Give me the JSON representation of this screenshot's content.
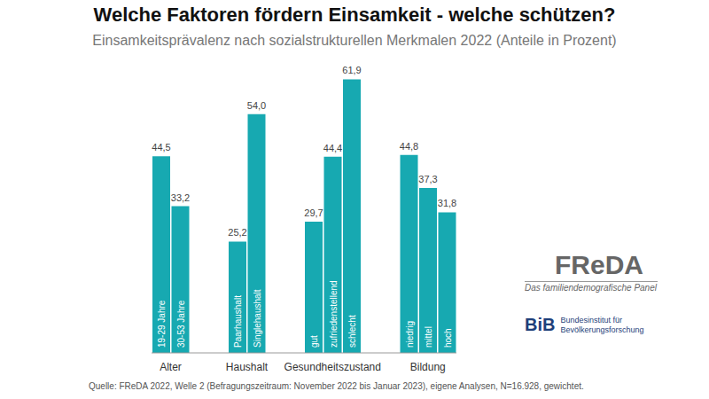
{
  "chart_data": {
    "type": "bar",
    "title": "Welche Faktoren fördern Einsamkeit - welche schützen?",
    "subtitle": "Einsamkeitsprävalenz nach sozialstrukturellen Merkmalen 2022 (Anteile in Prozent)",
    "categories": [
      "19-29 Jahre",
      "30-53 Jahre",
      "Paarhaushalt",
      "Singlehaushalt",
      "gut",
      "zufriedenstellend",
      "schlecht",
      "niedrig",
      "mittel",
      "hoch"
    ],
    "groups": [
      "Alter",
      "Alter",
      "Haushalt",
      "Haushalt",
      "Gesundheitszustand",
      "Gesundheitszustand",
      "Gesundheitszustand",
      "Bildung",
      "Bildung",
      "Bildung"
    ],
    "values": [
      44.5,
      33.2,
      25.2,
      54.0,
      29.7,
      44.4,
      61.9,
      44.8,
      37.3,
      31.8
    ],
    "value_labels": [
      "44,5",
      "33,2",
      "25,2",
      "54,0",
      "29,7",
      "44,4",
      "61,9",
      "44,8",
      "37,3",
      "31,8"
    ],
    "color": "#17a9b1",
    "ylim": [
      0,
      65
    ],
    "data_labels": true,
    "tick_labels": "x",
    "source": "Quelle: FReDA 2022, Welle 2 (Befragungszeitraum: November 2022 bis Januar 2023), eigene Analysen, N=16.928, gewichtet."
  },
  "logos": [
    {
      "name": "FReDA",
      "tagline": [
        "Das familiendemografische Panel"
      ]
    },
    {
      "name": "BiB",
      "tagline": [
        "Bundesinstitut für",
        "Bevölkerungsforschung"
      ]
    }
  ]
}
